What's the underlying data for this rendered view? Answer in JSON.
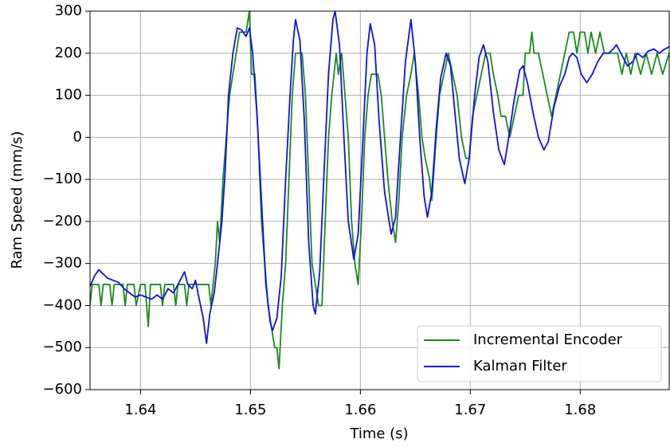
{
  "chart_data": {
    "type": "line",
    "xlabel": "Time (s)",
    "ylabel": "Ram Speed (mm/s)",
    "xlim": [
      1.6354,
      1.6881
    ],
    "ylim": [
      -600,
      300
    ],
    "xticks": [
      1.64,
      1.65,
      1.66,
      1.67,
      1.68
    ],
    "yticks": [
      {
        "value": -600,
        "label": "−600"
      },
      {
        "value": -500,
        "label": "−500"
      },
      {
        "value": -400,
        "label": "−400"
      },
      {
        "value": -300,
        "label": "−300"
      },
      {
        "value": -200,
        "label": "−200"
      },
      {
        "value": -100,
        "label": "−100"
      },
      0,
      100,
      200,
      300
    ],
    "grid": true,
    "legend": "lower right",
    "series": [
      {
        "name": "Incremental Encoder",
        "color": "#1a8a1a",
        "x": [
          1.6354,
          1.6356,
          1.6362,
          1.6364,
          1.6366,
          1.6372,
          1.6374,
          1.6376,
          1.6384,
          1.6386,
          1.6388,
          1.6394,
          1.6396,
          1.64,
          1.6404,
          1.6407,
          1.6409,
          1.6418,
          1.642,
          1.6422,
          1.643,
          1.6432,
          1.6434,
          1.644,
          1.6442,
          1.6444,
          1.6462,
          1.6464,
          1.6466,
          1.6468,
          1.647,
          1.6472,
          1.6475,
          1.6478,
          1.6481,
          1.6484,
          1.6487,
          1.649,
          1.6493,
          1.6496,
          1.6499,
          1.6501,
          1.6504,
          1.6507,
          1.651,
          1.6513,
          1.6516,
          1.6519,
          1.6522,
          1.6524,
          1.6526,
          1.6529,
          1.6532,
          1.6535,
          1.6538,
          1.6541,
          1.6547,
          1.655,
          1.6553,
          1.6556,
          1.6559,
          1.6562,
          1.6565,
          1.6568,
          1.6571,
          1.6574,
          1.6578,
          1.658,
          1.6583,
          1.6586,
          1.6589,
          1.6592,
          1.6595,
          1.6598,
          1.6601,
          1.6604,
          1.6607,
          1.661,
          1.6616,
          1.6619,
          1.6622,
          1.6625,
          1.6629,
          1.6632,
          1.6635,
          1.6638,
          1.6642,
          1.6646,
          1.6649,
          1.6653,
          1.6656,
          1.6659,
          1.6663,
          1.6665,
          1.6669,
          1.6672,
          1.6676,
          1.668,
          1.6684,
          1.6688,
          1.6692,
          1.6696,
          1.6699,
          1.6702,
          1.6706,
          1.671,
          1.6714,
          1.6718,
          1.6721,
          1.6725,
          1.6728,
          1.6732,
          1.6736,
          1.674,
          1.6744,
          1.6748,
          1.675,
          1.6754,
          1.6756,
          1.6758,
          1.6762,
          1.6766,
          1.677,
          1.6774,
          1.6778,
          1.6782,
          1.6786,
          1.679,
          1.6794,
          1.6797,
          1.68,
          1.6804,
          1.6807,
          1.681,
          1.6814,
          1.6818,
          1.6822,
          1.683,
          1.6834,
          1.6838,
          1.6842,
          1.6846,
          1.685,
          1.6855,
          1.686,
          1.6865,
          1.687,
          1.6875,
          1.6881
        ],
        "values": [
          -400,
          -350,
          -350,
          -400,
          -350,
          -350,
          -400,
          -350,
          -350,
          -400,
          -350,
          -350,
          -400,
          -350,
          -350,
          -450,
          -350,
          -350,
          -400,
          -350,
          -350,
          -400,
          -350,
          -350,
          -400,
          -350,
          -350,
          -400,
          -350,
          -300,
          -200,
          -250,
          -100,
          0,
          100,
          150,
          200,
          250,
          250,
          250,
          300,
          150,
          150,
          0,
          -200,
          -300,
          -400,
          -450,
          -500,
          -500,
          -550,
          -400,
          -300,
          -100,
          100,
          200,
          200,
          100,
          -100,
          -300,
          -350,
          -400,
          -400,
          -200,
          0,
          100,
          200,
          150,
          200,
          100,
          0,
          -200,
          -300,
          -350,
          -200,
          0,
          100,
          150,
          150,
          100,
          0,
          -100,
          -200,
          -250,
          -150,
          0,
          100,
          150,
          200,
          100,
          0,
          -50,
          -100,
          -150,
          0,
          100,
          150,
          200,
          150,
          100,
          0,
          -50,
          -50,
          50,
          100,
          150,
          200,
          200,
          150,
          100,
          50,
          50,
          0,
          50,
          100,
          100,
          200,
          200,
          250,
          200,
          200,
          150,
          100,
          50,
          100,
          150,
          200,
          250,
          250,
          200,
          250,
          250,
          200,
          250,
          200,
          250,
          200,
          200,
          200,
          150,
          200,
          150,
          200,
          150,
          200,
          150,
          200,
          150,
          200
        ]
      },
      {
        "name": "Kalman Filter",
        "color": "#1010e8",
        "x": [
          1.6354,
          1.6358,
          1.6362,
          1.6366,
          1.637,
          1.6375,
          1.638,
          1.6385,
          1.639,
          1.6395,
          1.64,
          1.6405,
          1.641,
          1.6415,
          1.642,
          1.6425,
          1.643,
          1.6435,
          1.644,
          1.6443,
          1.6447,
          1.645,
          1.6453,
          1.6457,
          1.646,
          1.6463,
          1.6467,
          1.647,
          1.6474,
          1.6477,
          1.648,
          1.6484,
          1.6488,
          1.6492,
          1.6496,
          1.6499,
          1.6502,
          1.6506,
          1.651,
          1.6514,
          1.6518,
          1.652,
          1.6524,
          1.6528,
          1.6532,
          1.6536,
          1.6539,
          1.6541,
          1.6545,
          1.6549,
          1.6553,
          1.6557,
          1.6559,
          1.6563,
          1.6567,
          1.6571,
          1.6575,
          1.6577,
          1.6581,
          1.6585,
          1.6589,
          1.6594,
          1.6598,
          1.6602,
          1.6606,
          1.6609,
          1.6613,
          1.6617,
          1.6622,
          1.6628,
          1.6632,
          1.6636,
          1.6641,
          1.6646,
          1.665,
          1.6654,
          1.6658,
          1.6661,
          1.6665,
          1.6669,
          1.6673,
          1.6678,
          1.6682,
          1.6686,
          1.669,
          1.6695,
          1.6699,
          1.6704,
          1.6708,
          1.6712,
          1.6716,
          1.6721,
          1.6726,
          1.6731,
          1.6735,
          1.674,
          1.6745,
          1.6748,
          1.6752,
          1.6757,
          1.6762,
          1.6767,
          1.6771,
          1.6776,
          1.6781,
          1.6786,
          1.679,
          1.6793,
          1.6797,
          1.6801,
          1.6806,
          1.6811,
          1.6816,
          1.6821,
          1.6826,
          1.683,
          1.6833,
          1.6837,
          1.6843,
          1.6848,
          1.6852,
          1.6857,
          1.6862,
          1.6867,
          1.6872,
          1.6877,
          1.6881
        ],
        "values": [
          -355,
          -330,
          -315,
          -325,
          -335,
          -340,
          -345,
          -360,
          -370,
          -380,
          -375,
          -380,
          -385,
          -375,
          -385,
          -360,
          -370,
          -345,
          -320,
          -350,
          -360,
          -340,
          -380,
          -430,
          -490,
          -420,
          -370,
          -300,
          -200,
          -80,
          100,
          200,
          260,
          255,
          240,
          260,
          200,
          50,
          -150,
          -350,
          -440,
          -460,
          -430,
          -330,
          -100,
          100,
          230,
          280,
          230,
          40,
          -250,
          -400,
          -420,
          -320,
          -80,
          150,
          280,
          300,
          220,
          0,
          -200,
          -290,
          -230,
          -20,
          200,
          270,
          220,
          40,
          -130,
          -230,
          -190,
          -20,
          180,
          280,
          180,
          0,
          -140,
          -190,
          -130,
          20,
          140,
          200,
          170,
          60,
          -50,
          -110,
          -50,
          100,
          190,
          220,
          180,
          60,
          -30,
          -65,
          0,
          90,
          160,
          170,
          130,
          60,
          0,
          -30,
          -10,
          70,
          120,
          150,
          190,
          200,
          190,
          150,
          130,
          150,
          180,
          200,
          200,
          210,
          220,
          200,
          170,
          180,
          200,
          190,
          205,
          210,
          200,
          210,
          215
        ]
      }
    ]
  }
}
